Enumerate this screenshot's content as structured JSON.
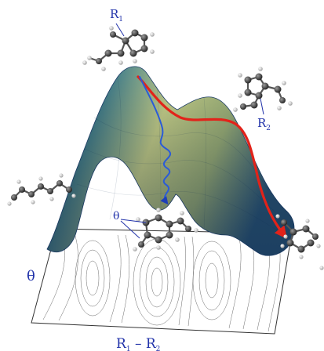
{
  "labels": {
    "r1": "R",
    "r1_sub": "1",
    "r2": "R",
    "r2_sub": "2",
    "theta_mol": "θ",
    "theta_axis": "θ",
    "baseline_a": "R",
    "baseline_a_sub": "1",
    "baseline_dash": " – ",
    "baseline_b": "R",
    "baseline_b_sub": "2"
  },
  "colors": {
    "label": "#2233aa",
    "path_red": "#e2231a",
    "path_blue": "#2a5bd8",
    "surface_dark": "#274a7a",
    "surface_mid": "#6a9a8a",
    "surface_light": "#c9d48a",
    "atom_carbon": "#3a3a3a",
    "atom_hydrogen": "#e8e8e8",
    "contour": "#555555"
  },
  "icons": [
    "molecule-top-icon",
    "molecule-right-icon",
    "molecule-left-chain-icon",
    "molecule-center-icon",
    "molecule-bottom-right-icon"
  ]
}
